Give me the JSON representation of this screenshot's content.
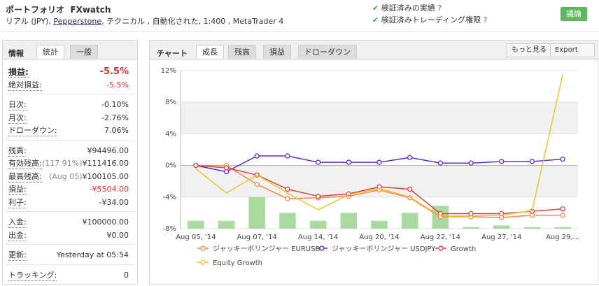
{
  "header": {
    "title": "ポートフォリオ",
    "name": "FXwatch",
    "details": [
      "リアル (JPY), ",
      "Pepperstone",
      ", テクニカル , 自動化された, 1:400 , MetaTrader 4"
    ],
    "badges": [
      "検証済みの実績",
      "検証済みトレーディング権限"
    ],
    "button": "議論"
  },
  "stats": {
    "tabs": [
      "情報",
      "統計",
      "一般"
    ],
    "groups": [
      [
        {
          "label": "損益:",
          "value": "-5.5%",
          "color": "#e03030"
        },
        {
          "label": "絶対損益:",
          "value": "-5.5%",
          "color": "#e03030"
        }
      ],
      [
        {
          "label": "日次:",
          "value": "-0.10%"
        },
        {
          "label": "月次:",
          "value": "-2.76%"
        },
        {
          "label": "ドローダウン:",
          "value": "7.06%"
        }
      ],
      [
        {
          "label": "残高:",
          "value": "¥94496.00"
        },
        {
          "label": "有効残高:",
          "note": "(117.91%)",
          "value": "¥111416.00"
        },
        {
          "label": "最高残高:",
          "note": "(Aug 05)",
          "value": "¥100105.00"
        },
        {
          "label": "損益:",
          "value": "-¥5504.00",
          "color": "#e03030"
        },
        {
          "label": "利子:",
          "value": "-¥34.00"
        }
      ],
      [
        {
          "label": "入金:",
          "value": "¥100000.00"
        },
        {
          "label": "出金:",
          "value": "¥0.00"
        }
      ],
      [
        {
          "label": "更新:",
          "value": "Yesterday at 05:54"
        }
      ],
      [
        {
          "label": "トラッキング:",
          "value": "0"
        }
      ]
    ]
  },
  "chart_panel": {
    "title": "チャート",
    "tabs": [
      "成長",
      "残高",
      "損益",
      "ドローダウン"
    ],
    "buttons": [
      "もっと見る",
      "Export"
    ]
  },
  "chart_data": {
    "type": "line",
    "categories": [
      "Aug 05, '14",
      null,
      "Aug 07, '14",
      null,
      "Aug 14, '14",
      null,
      "Aug 20, '14",
      null,
      "Aug 22, '14",
      null,
      "Aug 27, '14",
      null,
      "Aug 29,..."
    ],
    "ylim": [
      -8,
      12
    ],
    "yticks": [
      {
        "value": -8,
        "label": "-8%"
      },
      {
        "value": -4,
        "label": "-4%"
      },
      {
        "value": 0,
        "label": "0%"
      },
      {
        "value": 4,
        "label": "4%"
      },
      {
        "value": 8,
        "label": "8%"
      },
      {
        "value": 12,
        "label": "12%"
      }
    ],
    "grid": true,
    "series": [
      {
        "type": "bar",
        "color": "#a9dba0",
        "values": [
          -7.0,
          -7.0,
          -4.0,
          -6.0,
          -7.0,
          -6.0,
          -7.0,
          -6.0,
          -5.1,
          -7.8,
          -7.6,
          -7.8,
          -7.8
        ]
      },
      {
        "name": "ジャッキーボリンジャー EURUSD",
        "color": "#f08a4b",
        "markers": true,
        "values": [
          0,
          0,
          -2.4,
          -4.2,
          -4.1,
          -3.9,
          -3.1,
          -4.1,
          -6.5,
          -6.5,
          -6.6,
          -6.3,
          -6.3
        ]
      },
      {
        "name": "ジャッキーボリンジャー USDJPY",
        "color": "#5b2bd6",
        "markers": true,
        "values": [
          0,
          -0.8,
          1.2,
          1.2,
          0.4,
          0.4,
          0.4,
          1.0,
          0.3,
          0.3,
          0.5,
          0.5,
          0.8
        ]
      },
      {
        "name": "Growth",
        "color": "#e04040",
        "markers": true,
        "values": [
          0,
          -0.3,
          -1.2,
          -3.0,
          -3.9,
          -3.6,
          -2.7,
          -3.0,
          -6.1,
          -6.1,
          -6.1,
          -5.8,
          -5.5
        ]
      },
      {
        "name": "Equity Growth",
        "color": "#f2c12e",
        "markers": false,
        "values": [
          -0.4,
          -3.5,
          -1.2,
          -3.5,
          -5.6,
          -3.7,
          -2.9,
          -4.0,
          -6.4,
          -6.4,
          -6.3,
          -5.7,
          11.5
        ]
      }
    ]
  }
}
